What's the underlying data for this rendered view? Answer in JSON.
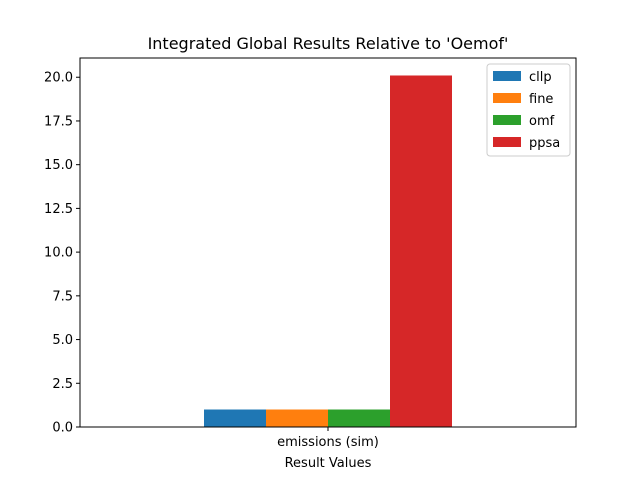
{
  "chart_data": {
    "type": "bar",
    "title": "Integrated Global Results Relative to 'Oemof'",
    "xlabel": "Result Values",
    "ylabel": "",
    "categories": [
      "emissions (sim)"
    ],
    "series": [
      {
        "name": "cllp",
        "color": "#1f77b4",
        "values": [
          1.0
        ]
      },
      {
        "name": "fine",
        "color": "#ff7f0e",
        "values": [
          1.0
        ]
      },
      {
        "name": "omf",
        "color": "#2ca02c",
        "values": [
          1.0
        ]
      },
      {
        "name": "ppsa",
        "color": "#d62728",
        "values": [
          20.1
        ]
      }
    ],
    "ylim": [
      0,
      21.1
    ],
    "yticks": [
      "0.0",
      "2.5",
      "5.0",
      "7.5",
      "10.0",
      "12.5",
      "15.0",
      "17.5",
      "20.0"
    ],
    "grid": false,
    "legend_position": "top-right"
  }
}
